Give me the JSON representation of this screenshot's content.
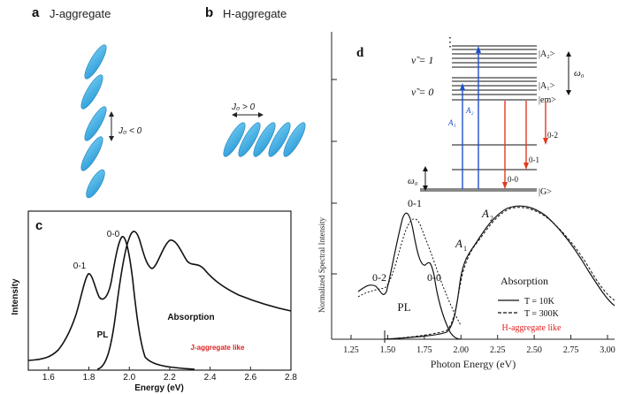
{
  "panels": {
    "a": {
      "letter": "a",
      "title": "J-aggregate",
      "coupling": "J₀ < 0"
    },
    "b": {
      "letter": "b",
      "title": "H-aggregate",
      "coupling": "J₀ > 0"
    },
    "c": {
      "letter": "c",
      "ylabel": "Intensity",
      "xlabel": "Energy (eV)",
      "x_ticks": [
        "1.6",
        "1.8",
        "2.0",
        "2.2",
        "2.4",
        "2.6",
        "2.8"
      ],
      "peak_labels": {
        "p01": "0-1",
        "p00": "0-0"
      },
      "curve_labels": {
        "pl": "PL",
        "absorption": "Absorption"
      },
      "note": "J-aggregate like",
      "note_color": "#e02020"
    },
    "d": {
      "letter": "d",
      "ylabel": "Normalized Spectral Intensity",
      "xlabel": "Photon Energy (eV)",
      "x_ticks": [
        "1.25",
        "1.50",
        "1.75",
        "2.00",
        "2.25",
        "2.50",
        "2.75",
        "3.00"
      ],
      "peak_labels": {
        "p02": "0-2",
        "p01": "0-1",
        "p00": "0-0",
        "a1": "A",
        "a1_sub": "1",
        "a2": "A",
        "a2_sub": "2"
      },
      "curve_labels": {
        "pl": "PL",
        "absorption": "Absorption"
      },
      "legend": {
        "solid": "T = 10K",
        "dashed": "T = 300K"
      },
      "note": "H-aggregate like",
      "note_color": "#e02020",
      "levels": {
        "dots": "⋮",
        "nu1": "ν̃ = 1",
        "nu0": "ν̃ = 0",
        "A2_state": "|A₂>",
        "A1_state": "|A₁>",
        "em_state": "|em>",
        "G_state": "|G>",
        "omega0": "ω₀",
        "A1_arrow": "A₁",
        "A2_arrow": "A₂",
        "t02": "0-2",
        "t01": "0-1",
        "t00": "0-0"
      },
      "colors": {
        "absorption_arrow": "#1f4fd1",
        "emission_arrow": "#e03a1e"
      }
    }
  },
  "chart_data": [
    {
      "type": "line",
      "panel": "c",
      "xlabel": "Energy (eV)",
      "ylabel": "Intensity",
      "xlim": [
        1.5,
        2.8
      ],
      "series": [
        {
          "name": "PL",
          "x": [
            1.5,
            1.6,
            1.68,
            1.73,
            1.77,
            1.8,
            1.85,
            1.9,
            1.93,
            1.96,
            2.0,
            2.05,
            2.12,
            2.2,
            2.3
          ],
          "y": [
            0.02,
            0.1,
            0.25,
            0.45,
            0.6,
            0.5,
            0.42,
            0.7,
            0.92,
            0.85,
            0.3,
            0.08,
            0.03,
            0.01,
            0.0
          ]
        },
        {
          "name": "Absorption",
          "x": [
            1.85,
            1.92,
            1.97,
            2.02,
            2.07,
            2.12,
            2.18,
            2.25,
            2.3,
            2.36,
            2.45,
            2.55,
            2.65,
            2.8
          ],
          "y": [
            0.02,
            0.3,
            0.82,
            0.9,
            0.72,
            0.65,
            0.84,
            0.75,
            0.64,
            0.62,
            0.5,
            0.42,
            0.36,
            0.29
          ]
        }
      ]
    },
    {
      "type": "line",
      "panel": "d",
      "xlabel": "Photon Energy (eV)",
      "ylabel": "Normalized Spectral Intensity",
      "xlim": [
        1.25,
        3.0
      ],
      "series": [
        {
          "name": "PL T = 10K",
          "x": [
            1.4,
            1.45,
            1.5,
            1.55,
            1.6,
            1.65,
            1.7,
            1.75,
            1.8,
            1.85,
            1.9,
            1.95
          ],
          "y": [
            0.3,
            0.42,
            0.48,
            0.38,
            0.6,
            0.95,
            0.7,
            0.5,
            0.55,
            0.25,
            0.05,
            0.0
          ]
        },
        {
          "name": "PL T = 300K",
          "x": [
            1.4,
            1.5,
            1.6,
            1.7,
            1.8,
            1.9,
            1.97
          ],
          "y": [
            0.3,
            0.38,
            0.7,
            0.9,
            0.65,
            0.35,
            0.08
          ]
        },
        {
          "name": "Absorption T = 10K",
          "x": [
            1.5,
            1.75,
            1.9,
            2.0,
            2.05,
            2.1,
            2.2,
            2.3,
            2.4,
            2.5,
            2.6,
            2.75,
            3.0
          ],
          "y": [
            0.0,
            0.02,
            0.05,
            0.2,
            0.5,
            0.65,
            0.82,
            0.92,
            0.96,
            0.9,
            0.8,
            0.62,
            0.3
          ]
        },
        {
          "name": "Absorption T = 300K",
          "x": [
            1.5,
            1.75,
            1.9,
            2.0,
            2.05,
            2.1,
            2.2,
            2.3,
            2.4,
            2.5,
            2.6,
            2.75,
            3.0
          ],
          "y": [
            0.0,
            0.03,
            0.07,
            0.24,
            0.52,
            0.66,
            0.8,
            0.9,
            0.95,
            0.92,
            0.84,
            0.68,
            0.36
          ]
        }
      ]
    }
  ]
}
